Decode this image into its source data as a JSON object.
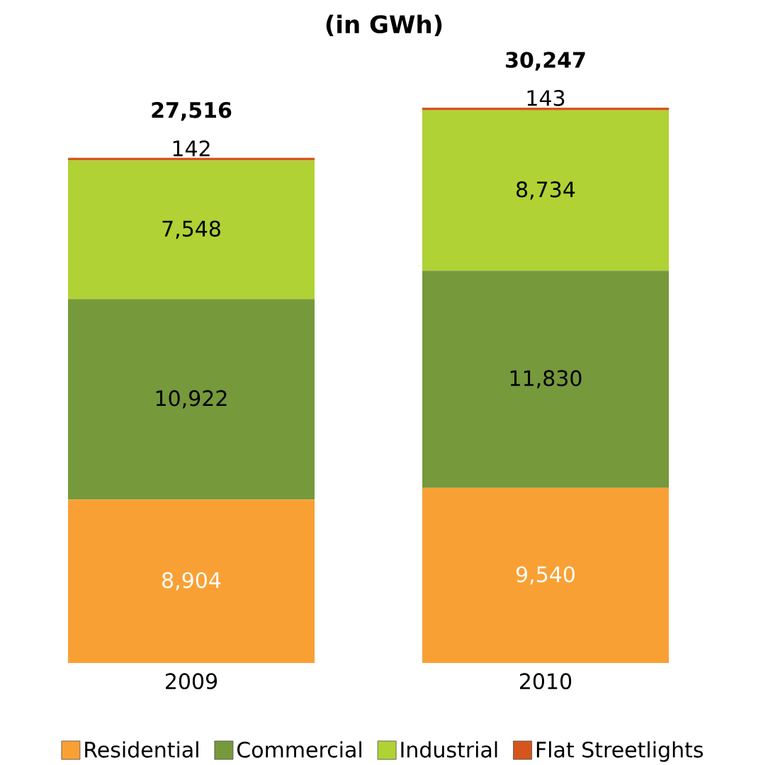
{
  "chart_data": {
    "type": "bar",
    "title": "(in GWh)",
    "categories": [
      "2009",
      "2010"
    ],
    "stacked": true,
    "legend": "bottom",
    "series": [
      {
        "name": "Residential",
        "color": "#f9a035",
        "values": [
          8904,
          9540
        ],
        "value_labels": [
          "8,904",
          "9,540"
        ]
      },
      {
        "name": "Commercial",
        "color": "#76993c",
        "values": [
          10922,
          11830
        ],
        "value_labels": [
          "10,922",
          "11,830"
        ]
      },
      {
        "name": "Industrial",
        "color": "#b0d235",
        "values": [
          7548,
          8734
        ],
        "value_labels": [
          "7,548",
          "8,734"
        ]
      },
      {
        "name": "Flat Streetlights",
        "color": "#d4561c",
        "values": [
          142,
          143
        ],
        "value_labels": [
          "142",
          "143"
        ]
      }
    ],
    "totals": [
      "27,516",
      "30,247"
    ]
  }
}
